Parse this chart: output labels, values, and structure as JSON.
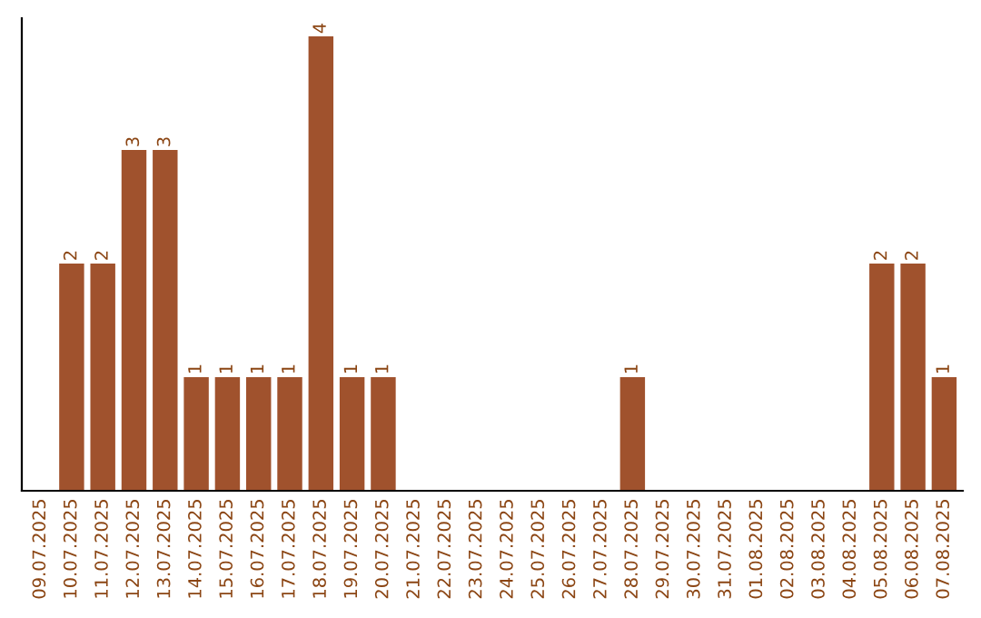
{
  "chart_data": {
    "type": "bar",
    "categories": [
      "09.07.2025",
      "10.07.2025",
      "11.07.2025",
      "12.07.2025",
      "13.07.2025",
      "14.07.2025",
      "15.07.2025",
      "16.07.2025",
      "17.07.2025",
      "18.07.2025",
      "19.07.2025",
      "20.07.2025",
      "21.07.2025",
      "22.07.2025",
      "23.07.2025",
      "24.07.2025",
      "25.07.2025",
      "26.07.2025",
      "27.07.2025",
      "28.07.2025",
      "29.07.2025",
      "30.07.2025",
      "31.07.2025",
      "01.08.2025",
      "02.08.2025",
      "03.08.2025",
      "04.08.2025",
      "05.08.2025",
      "06.08.2025",
      "07.08.2025"
    ],
    "values": [
      0,
      2,
      2,
      3,
      3,
      1,
      1,
      1,
      1,
      4,
      1,
      1,
      0,
      0,
      0,
      0,
      0,
      0,
      0,
      1,
      0,
      0,
      0,
      0,
      0,
      0,
      0,
      2,
      2,
      1
    ],
    "value_labels": [
      null,
      "2",
      "2",
      "3",
      "3",
      "1",
      "1",
      "1",
      "1",
      "4",
      "1",
      "1",
      null,
      null,
      null,
      null,
      null,
      null,
      null,
      "1",
      null,
      null,
      null,
      null,
      null,
      null,
      null,
      "2",
      "2",
      "1"
    ],
    "color": "#a0522d",
    "tick_labels": "x",
    "grid": false
  }
}
